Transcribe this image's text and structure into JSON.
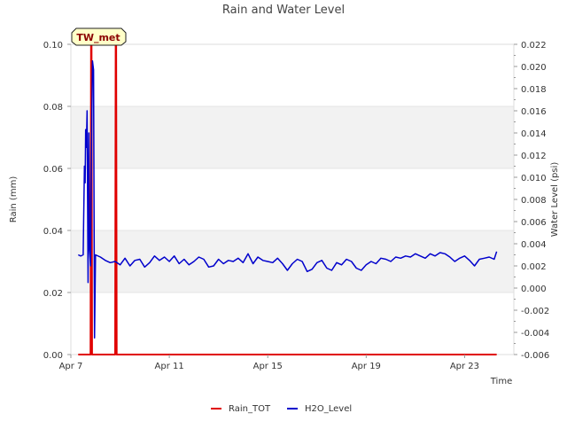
{
  "chart_data": {
    "type": "line",
    "title": "Rain and Water Level",
    "xlabel": "Time",
    "ylabel_left": "Rain (mm)",
    "ylabel_right": "Water Level (psi)",
    "badge": "TW_met",
    "x_range_days": [
      0,
      18
    ],
    "x_ticks": [
      {
        "label": "Apr 7",
        "day": 0
      },
      {
        "label": "Apr 11",
        "day": 4
      },
      {
        "label": "Apr 15",
        "day": 8
      },
      {
        "label": "Apr 19",
        "day": 12
      },
      {
        "label": "Apr 23",
        "day": 16
      }
    ],
    "y_left": {
      "range": [
        0,
        0.1
      ],
      "ticks": [
        "0.00",
        "0.02",
        "0.04",
        "0.06",
        "0.08",
        "0.10"
      ]
    },
    "y_right": {
      "range": [
        -0.006,
        0.022
      ],
      "ticks": [
        "-0.006",
        "-0.004",
        "-0.002",
        "0.000",
        "0.002",
        "0.004",
        "0.006",
        "0.008",
        "0.010",
        "0.012",
        "0.014",
        "0.016",
        "0.018",
        "0.020",
        "0.022"
      ]
    },
    "series": [
      {
        "name": "Rain_TOT",
        "color": "#e00000",
        "axis": "left",
        "points": [
          [
            0.3,
            0
          ],
          [
            0.8,
            0
          ],
          [
            0.82,
            0.1
          ],
          [
            0.84,
            0.1
          ],
          [
            0.86,
            0
          ],
          [
            1.8,
            0
          ],
          [
            1.82,
            0.1
          ],
          [
            1.84,
            0.1
          ],
          [
            1.86,
            0
          ],
          [
            17.3,
            0
          ]
        ]
      },
      {
        "name": "H2O_Level",
        "color": "#0000cc",
        "axis": "right",
        "points": [
          [
            0.3,
            0.003
          ],
          [
            0.4,
            0.0029
          ],
          [
            0.5,
            0.003
          ],
          [
            0.52,
            0.006
          ],
          [
            0.55,
            0.011
          ],
          [
            0.58,
            0.0095
          ],
          [
            0.6,
            0.0143
          ],
          [
            0.63,
            0.0127
          ],
          [
            0.66,
            0.016
          ],
          [
            0.7,
            0.0005
          ],
          [
            0.73,
            0.014
          ],
          [
            0.76,
            0.0035
          ],
          [
            0.8,
            0.002
          ],
          [
            0.84,
            0.013
          ],
          [
            0.88,
            0.0205
          ],
          [
            0.92,
            0.0197
          ],
          [
            0.96,
            -0.0045
          ],
          [
            1.0,
            0.003
          ],
          [
            1.2,
            0.0028
          ],
          [
            1.4,
            0.0025
          ],
          [
            1.6,
            0.0023
          ],
          [
            1.8,
            0.0024
          ],
          [
            2.0,
            0.0021
          ],
          [
            2.2,
            0.0027
          ],
          [
            2.4,
            0.002
          ],
          [
            2.6,
            0.0025
          ],
          [
            2.8,
            0.0026
          ],
          [
            3.0,
            0.0019
          ],
          [
            3.2,
            0.0023
          ],
          [
            3.4,
            0.0029
          ],
          [
            3.6,
            0.0025
          ],
          [
            3.8,
            0.0028
          ],
          [
            4.0,
            0.0024
          ],
          [
            4.2,
            0.0029
          ],
          [
            4.4,
            0.0022
          ],
          [
            4.6,
            0.0026
          ],
          [
            4.8,
            0.0021
          ],
          [
            5.0,
            0.0024
          ],
          [
            5.2,
            0.0028
          ],
          [
            5.4,
            0.0026
          ],
          [
            5.6,
            0.0019
          ],
          [
            5.8,
            0.002
          ],
          [
            6.0,
            0.0026
          ],
          [
            6.2,
            0.0022
          ],
          [
            6.4,
            0.0025
          ],
          [
            6.6,
            0.0024
          ],
          [
            6.8,
            0.0027
          ],
          [
            7.0,
            0.0023
          ],
          [
            7.2,
            0.0031
          ],
          [
            7.4,
            0.0022
          ],
          [
            7.6,
            0.0028
          ],
          [
            7.8,
            0.0025
          ],
          [
            8.0,
            0.0024
          ],
          [
            8.2,
            0.0023
          ],
          [
            8.4,
            0.0027
          ],
          [
            8.6,
            0.0022
          ],
          [
            8.8,
            0.0016
          ],
          [
            9.0,
            0.0022
          ],
          [
            9.2,
            0.0026
          ],
          [
            9.4,
            0.0024
          ],
          [
            9.6,
            0.0015
          ],
          [
            9.8,
            0.0017
          ],
          [
            10.0,
            0.0023
          ],
          [
            10.2,
            0.0025
          ],
          [
            10.4,
            0.0018
          ],
          [
            10.6,
            0.0016
          ],
          [
            10.8,
            0.0023
          ],
          [
            11.0,
            0.0021
          ],
          [
            11.2,
            0.0026
          ],
          [
            11.4,
            0.0024
          ],
          [
            11.6,
            0.0018
          ],
          [
            11.8,
            0.0016
          ],
          [
            12.0,
            0.0021
          ],
          [
            12.2,
            0.0024
          ],
          [
            12.4,
            0.0022
          ],
          [
            12.6,
            0.0027
          ],
          [
            12.8,
            0.0026
          ],
          [
            13.0,
            0.0024
          ],
          [
            13.2,
            0.0028
          ],
          [
            13.4,
            0.0027
          ],
          [
            13.6,
            0.0029
          ],
          [
            13.8,
            0.0028
          ],
          [
            14.0,
            0.0031
          ],
          [
            14.2,
            0.0029
          ],
          [
            14.4,
            0.0027
          ],
          [
            14.6,
            0.0031
          ],
          [
            14.8,
            0.0029
          ],
          [
            15.0,
            0.0032
          ],
          [
            15.2,
            0.0031
          ],
          [
            15.4,
            0.0028
          ],
          [
            15.6,
            0.0024
          ],
          [
            15.8,
            0.0027
          ],
          [
            16.0,
            0.0029
          ],
          [
            16.2,
            0.0025
          ],
          [
            16.4,
            0.002
          ],
          [
            16.6,
            0.0026
          ],
          [
            16.8,
            0.0027
          ],
          [
            17.0,
            0.0028
          ],
          [
            17.2,
            0.0026
          ],
          [
            17.3,
            0.0033
          ]
        ]
      }
    ],
    "legend": {
      "position": "bottom-center",
      "entries": [
        "Rain_TOT",
        "H2O_Level"
      ]
    }
  }
}
